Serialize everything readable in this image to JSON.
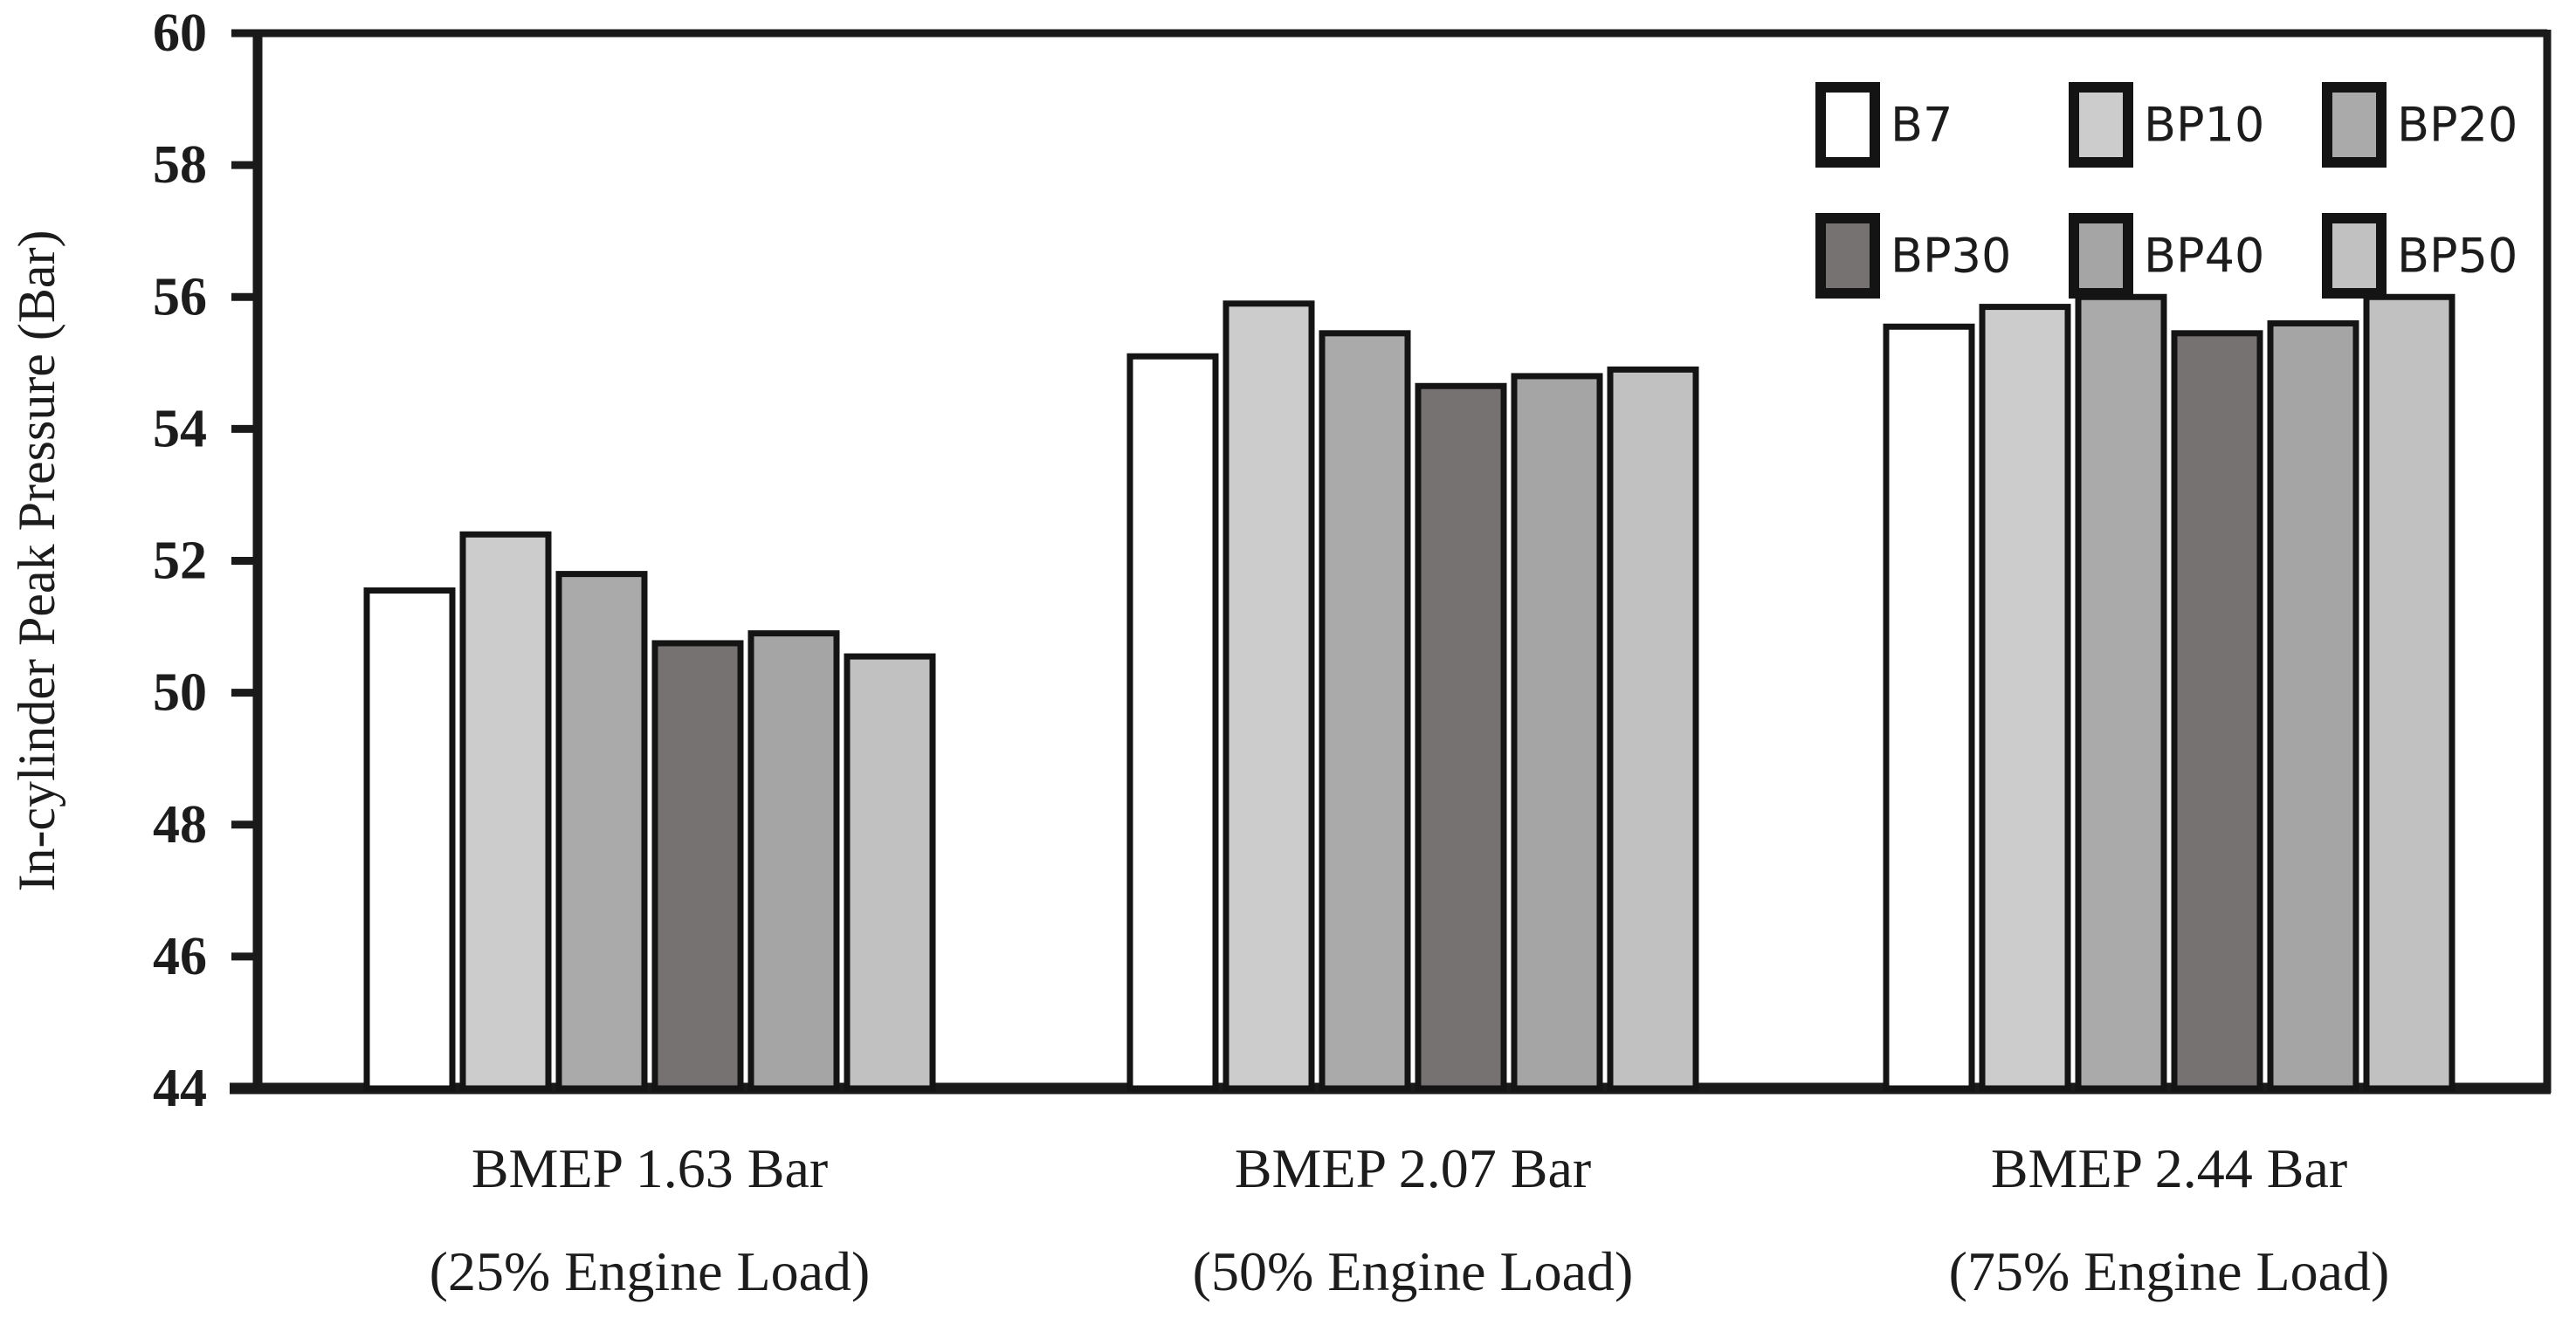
{
  "figure": {
    "background": "#ffffff",
    "axis_color": "#1a1a1a",
    "bar_border_color": "#141414",
    "text_color": "#1c1c1c"
  },
  "chart_data": {
    "type": "bar",
    "title": "",
    "xlabel": "",
    "ylabel": "In-cylinder Peak Pressure (Bar)",
    "ylim": [
      44,
      60
    ],
    "yticks": [
      44,
      46,
      48,
      50,
      52,
      54,
      56,
      58,
      60
    ],
    "grid": false,
    "legend_position": "top-right-inside",
    "legend_rows": [
      [
        "B7",
        "BP10",
        "BP20"
      ],
      [
        "BP30",
        "BP40",
        "BP50"
      ]
    ],
    "categories": [
      {
        "line1": "BMEP 1.63 Bar",
        "line2": "(25% Engine Load)"
      },
      {
        "line1": "BMEP 2.07 Bar",
        "line2": "(50% Engine Load)"
      },
      {
        "line1": "BMEP 2.44 Bar",
        "line2": "(75% Engine Load)"
      }
    ],
    "series": [
      {
        "name": "B7",
        "color": "#ffffff",
        "values": [
          51.55,
          55.1,
          55.55
        ]
      },
      {
        "name": "BP10",
        "color": "#cccccc",
        "values": [
          52.4,
          55.9,
          55.85
        ]
      },
      {
        "name": "BP20",
        "color": "#aaaaaa",
        "values": [
          51.8,
          55.45,
          56.0
        ]
      },
      {
        "name": "BP30",
        "color": "#767272",
        "values": [
          50.75,
          54.65,
          55.45
        ]
      },
      {
        "name": "BP40",
        "color": "#a5a5a5",
        "values": [
          50.9,
          54.8,
          55.6
        ]
      },
      {
        "name": "BP50",
        "color": "#c1c1c1",
        "values": [
          50.55,
          54.9,
          56.0
        ]
      }
    ]
  }
}
